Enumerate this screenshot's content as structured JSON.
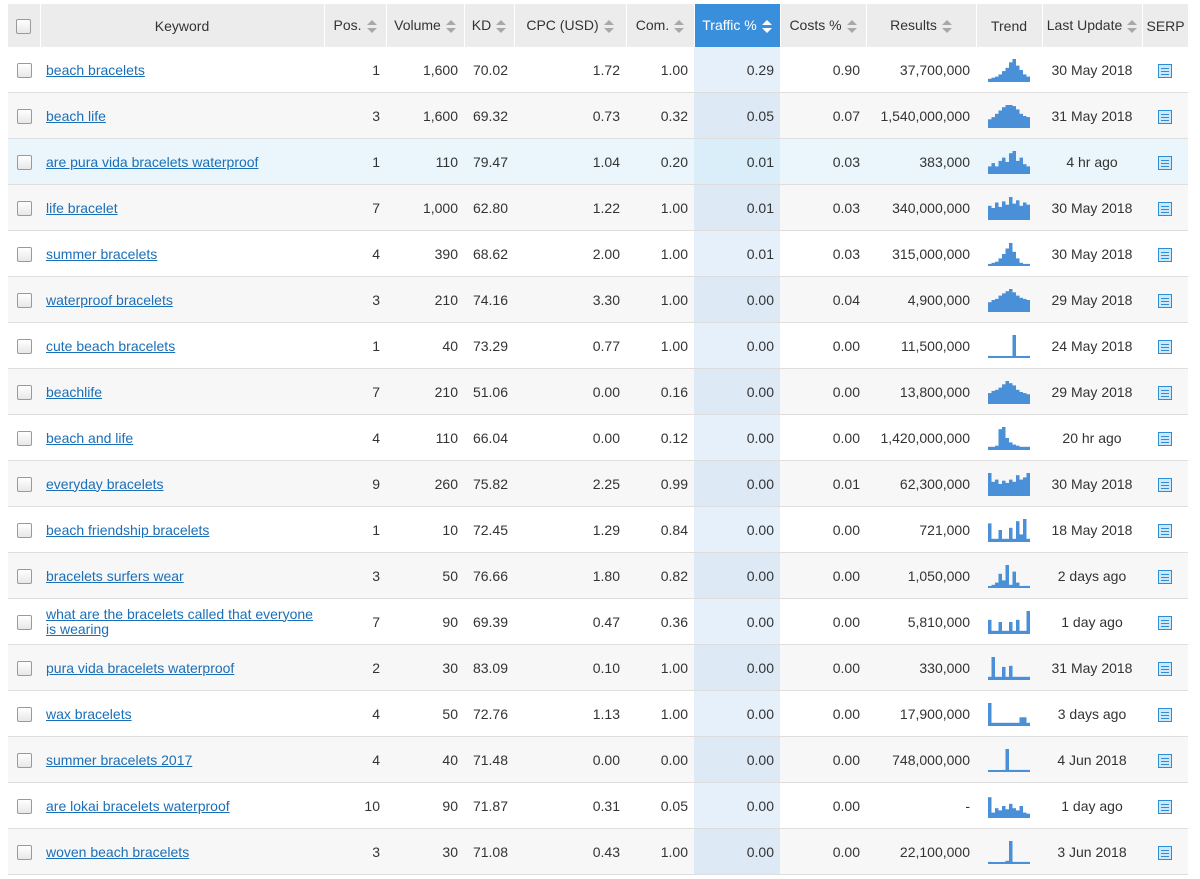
{
  "headers": {
    "keyword": "Keyword",
    "pos": "Pos.",
    "volume": "Volume",
    "kd": "KD",
    "cpc": "CPC (USD)",
    "com": "Com.",
    "traffic": "Traffic %",
    "costs": "Costs %",
    "results": "Results",
    "trend": "Trend",
    "last_update": "Last Update",
    "serp": "SERP"
  },
  "colors": {
    "sorted_header": "#3a8fdd",
    "link": "#1a6fb8",
    "trend_bars": "#4a90d9",
    "highlight_row": "#eaf6fb"
  },
  "sorted_column": "traffic",
  "highlighted_row_index": 2,
  "rows": [
    {
      "keyword": "beach bracelets",
      "pos": "1",
      "volume": "1,600",
      "kd": "70.02",
      "cpc": "1.72",
      "com": "1.00",
      "traffic": "0.29",
      "costs": "0.90",
      "results": "37,700,000",
      "last_update": "30 May 2018",
      "trend": [
        0.1,
        0.15,
        0.2,
        0.3,
        0.45,
        0.6,
        0.85,
        1,
        0.7,
        0.5,
        0.3,
        0.2
      ]
    },
    {
      "keyword": "beach life",
      "pos": "3",
      "volume": "1,600",
      "kd": "69.32",
      "cpc": "0.73",
      "com": "0.32",
      "traffic": "0.05",
      "costs": "0.07",
      "results": "1,540,000,000",
      "last_update": "31 May 2018",
      "trend": [
        0.35,
        0.45,
        0.6,
        0.75,
        0.9,
        1,
        1,
        0.95,
        0.8,
        0.6,
        0.5,
        0.45
      ]
    },
    {
      "keyword": "are pura vida bracelets waterproof",
      "pos": "1",
      "volume": "110",
      "kd": "79.47",
      "cpc": "1.04",
      "com": "0.20",
      "traffic": "0.01",
      "costs": "0.03",
      "results": "383,000",
      "last_update": "4 hr ago",
      "trend": [
        0.3,
        0.45,
        0.3,
        0.55,
        0.7,
        0.5,
        0.9,
        1,
        0.55,
        0.7,
        0.4,
        0.3
      ]
    },
    {
      "keyword": "life bracelet",
      "pos": "7",
      "volume": "1,000",
      "kd": "62.80",
      "cpc": "1.22",
      "com": "1.00",
      "traffic": "0.01",
      "costs": "0.03",
      "results": "340,000,000",
      "last_update": "30 May 2018",
      "trend": [
        0.6,
        0.5,
        0.75,
        0.55,
        0.8,
        0.65,
        1,
        0.7,
        0.85,
        0.6,
        0.75,
        0.65
      ]
    },
    {
      "keyword": "summer bracelets",
      "pos": "4",
      "volume": "390",
      "kd": "68.62",
      "cpc": "2.00",
      "com": "1.00",
      "traffic": "0.01",
      "costs": "0.03",
      "results": "315,000,000",
      "last_update": "30 May 2018",
      "trend": [
        0.05,
        0.1,
        0.15,
        0.3,
        0.5,
        0.75,
        1,
        0.6,
        0.3,
        0.1,
        0.05,
        0.05
      ]
    },
    {
      "keyword": "waterproof bracelets",
      "pos": "3",
      "volume": "210",
      "kd": "74.16",
      "cpc": "3.30",
      "com": "1.00",
      "traffic": "0.00",
      "costs": "0.04",
      "results": "4,900,000",
      "last_update": "29 May 2018",
      "trend": [
        0.4,
        0.5,
        0.55,
        0.7,
        0.8,
        0.9,
        1,
        0.85,
        0.7,
        0.6,
        0.55,
        0.5
      ]
    },
    {
      "keyword": "cute beach bracelets",
      "pos": "1",
      "volume": "40",
      "kd": "73.29",
      "cpc": "0.77",
      "com": "1.00",
      "traffic": "0.00",
      "costs": "0.00",
      "results": "11,500,000",
      "last_update": "24 May 2018",
      "trend": [
        0.05,
        0,
        0,
        0,
        0,
        0,
        0,
        1,
        0,
        0,
        0,
        0.05
      ]
    },
    {
      "keyword": "beachlife",
      "pos": "7",
      "volume": "210",
      "kd": "51.06",
      "cpc": "0.00",
      "com": "0.16",
      "traffic": "0.00",
      "costs": "0.00",
      "results": "13,800,000",
      "last_update": "29 May 2018",
      "trend": [
        0.45,
        0.55,
        0.6,
        0.7,
        0.85,
        1,
        0.9,
        0.8,
        0.6,
        0.5,
        0.45,
        0.4
      ]
    },
    {
      "keyword": "beach and life",
      "pos": "4",
      "volume": "110",
      "kd": "66.04",
      "cpc": "0.00",
      "com": "0.12",
      "traffic": "0.00",
      "costs": "0.00",
      "results": "1,420,000,000",
      "last_update": "20 hr ago",
      "trend": [
        0.1,
        0.1,
        0.15,
        0.9,
        1,
        0.5,
        0.3,
        0.2,
        0.15,
        0.1,
        0.1,
        0.1
      ]
    },
    {
      "keyword": "everyday bracelets",
      "pos": "9",
      "volume": "260",
      "kd": "75.82",
      "cpc": "2.25",
      "com": "0.99",
      "traffic": "0.00",
      "costs": "0.01",
      "results": "62,300,000",
      "last_update": "30 May 2018",
      "trend": [
        1,
        0.6,
        0.7,
        0.5,
        0.65,
        0.55,
        0.7,
        0.6,
        0.9,
        0.7,
        0.8,
        1
      ]
    },
    {
      "keyword": "beach friendship bracelets",
      "pos": "1",
      "volume": "10",
      "kd": "72.45",
      "cpc": "1.29",
      "com": "0.84",
      "traffic": "0.00",
      "costs": "0.00",
      "results": "721,000",
      "last_update": "18 May 2018",
      "trend": [
        0.8,
        0.1,
        0.1,
        0.5,
        0.1,
        0.1,
        0.6,
        0.1,
        0.9,
        0.3,
        1,
        0.1
      ]
    },
    {
      "keyword": "bracelets surfers wear",
      "pos": "3",
      "volume": "50",
      "kd": "76.66",
      "cpc": "1.80",
      "com": "0.82",
      "traffic": "0.00",
      "costs": "0.00",
      "results": "1,050,000",
      "last_update": "2 days ago",
      "trend": [
        0,
        0.1,
        0.2,
        0.6,
        0.3,
        1,
        0.1,
        0.7,
        0.2,
        0,
        0.05,
        0.05
      ]
    },
    {
      "keyword": "what are the bracelets called that everyone is wearing",
      "pos": "7",
      "volume": "90",
      "kd": "69.39",
      "cpc": "0.47",
      "com": "0.36",
      "traffic": "0.00",
      "costs": "0.00",
      "results": "5,810,000",
      "last_update": "1 day ago",
      "trend": [
        0.6,
        0.1,
        0.1,
        0.5,
        0.1,
        0.1,
        0.5,
        0.1,
        0.6,
        0.1,
        0.1,
        1
      ]
    },
    {
      "keyword": "pura vida bracelets waterproof",
      "pos": "2",
      "volume": "30",
      "kd": "83.09",
      "cpc": "0.10",
      "com": "1.00",
      "traffic": "0.00",
      "costs": "0.00",
      "results": "330,000",
      "last_update": "31 May 2018",
      "trend": [
        0.1,
        1,
        0.1,
        0.1,
        0.55,
        0.1,
        0.6,
        0.1,
        0.1,
        0.1,
        0.1,
        0.1
      ]
    },
    {
      "keyword": "wax bracelets",
      "pos": "4",
      "volume": "50",
      "kd": "72.76",
      "cpc": "1.13",
      "com": "1.00",
      "traffic": "0.00",
      "costs": "0.00",
      "results": "17,900,000",
      "last_update": "3 days ago",
      "trend": [
        1,
        0.1,
        0.1,
        0.1,
        0.1,
        0.1,
        0.1,
        0.1,
        0.1,
        0.35,
        0.35,
        0.1
      ]
    },
    {
      "keyword": "summer bracelets 2017",
      "pos": "4",
      "volume": "40",
      "kd": "71.48",
      "cpc": "0.00",
      "com": "0.00",
      "traffic": "0.00",
      "costs": "0.00",
      "results": "748,000,000",
      "last_update": "4 Jun 2018",
      "trend": [
        0,
        0,
        0,
        0,
        0.05,
        1,
        0.05,
        0.05,
        0.05,
        0.05,
        0.05,
        0.05
      ]
    },
    {
      "keyword": "are lokai bracelets waterproof",
      "pos": "10",
      "volume": "90",
      "kd": "71.87",
      "cpc": "0.31",
      "com": "0.05",
      "traffic": "0.00",
      "costs": "0.00",
      "results": "-",
      "last_update": "1 day ago",
      "trend": [
        0.9,
        0.2,
        0.4,
        0.3,
        0.5,
        0.35,
        0.6,
        0.4,
        0.3,
        0.5,
        0.2,
        0.15
      ]
    },
    {
      "keyword": "woven beach bracelets",
      "pos": "3",
      "volume": "30",
      "kd": "71.08",
      "cpc": "0.43",
      "com": "1.00",
      "traffic": "0.00",
      "costs": "0.00",
      "results": "22,100,000",
      "last_update": "3 Jun 2018",
      "trend": [
        0.05,
        0,
        0,
        0,
        0.05,
        0.1,
        1,
        0.05,
        0.05,
        0.05,
        0.05,
        0.05
      ]
    }
  ]
}
